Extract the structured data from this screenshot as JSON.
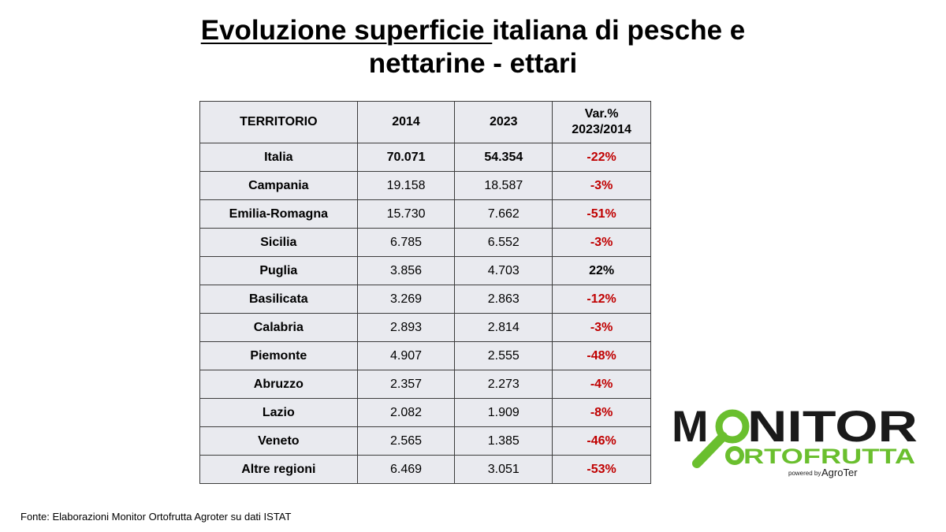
{
  "title": {
    "underlined": "Evoluzione superficie ",
    "rest_line1": "italiana di pesche e",
    "line2": "nettarine - ettari"
  },
  "table": {
    "headers": [
      "TERRITORIO",
      "2014",
      "2023",
      "Var.%",
      "2023/2014"
    ],
    "rows": [
      {
        "territorio": "Italia",
        "y2014": "70.071",
        "y2023": "54.354",
        "var": "-22%"
      },
      {
        "territorio": "Campania",
        "y2014": "19.158",
        "y2023": "18.587",
        "var": "-3%"
      },
      {
        "territorio": "Emilia-Romagna",
        "y2014": "15.730",
        "y2023": "7.662",
        "var": "-51%"
      },
      {
        "territorio": "Sicilia",
        "y2014": "6.785",
        "y2023": "6.552",
        "var": "-3%"
      },
      {
        "territorio": "Puglia",
        "y2014": "3.856",
        "y2023": "4.703",
        "var": "22%"
      },
      {
        "territorio": "Basilicata",
        "y2014": "3.269",
        "y2023": "2.863",
        "var": "-12%"
      },
      {
        "territorio": "Calabria",
        "y2014": "2.893",
        "y2023": "2.814",
        "var": "-3%"
      },
      {
        "territorio": "Piemonte",
        "y2014": "4.907",
        "y2023": "2.555",
        "var": "-48%"
      },
      {
        "territorio": "Abruzzo",
        "y2014": "2.357",
        "y2023": "2.273",
        "var": "-4%"
      },
      {
        "territorio": "Lazio",
        "y2014": "2.082",
        "y2023": "1.909",
        "var": "-8%"
      },
      {
        "territorio": "Veneto",
        "y2014": "2.565",
        "y2023": "1.385",
        "var": "-46%"
      },
      {
        "territorio": "Altre regioni",
        "y2014": "6.469",
        "y2023": "3.051",
        "var": "-53%"
      }
    ]
  },
  "source": "Fonte: Elaborazioni Monitor Ortofrutta Agroter su dati ISTAT",
  "logo": {
    "line1_m": "M",
    "line1_rest": "NITOR",
    "line2_rest": "RTOFRUTTA",
    "powered": "powered by",
    "brand": "AgroTer"
  },
  "colors": {
    "negative": "#c00000",
    "table_bg": "#e9eaef",
    "logo_green": "#6abf2e",
    "logo_dark": "#1a1a1a"
  }
}
